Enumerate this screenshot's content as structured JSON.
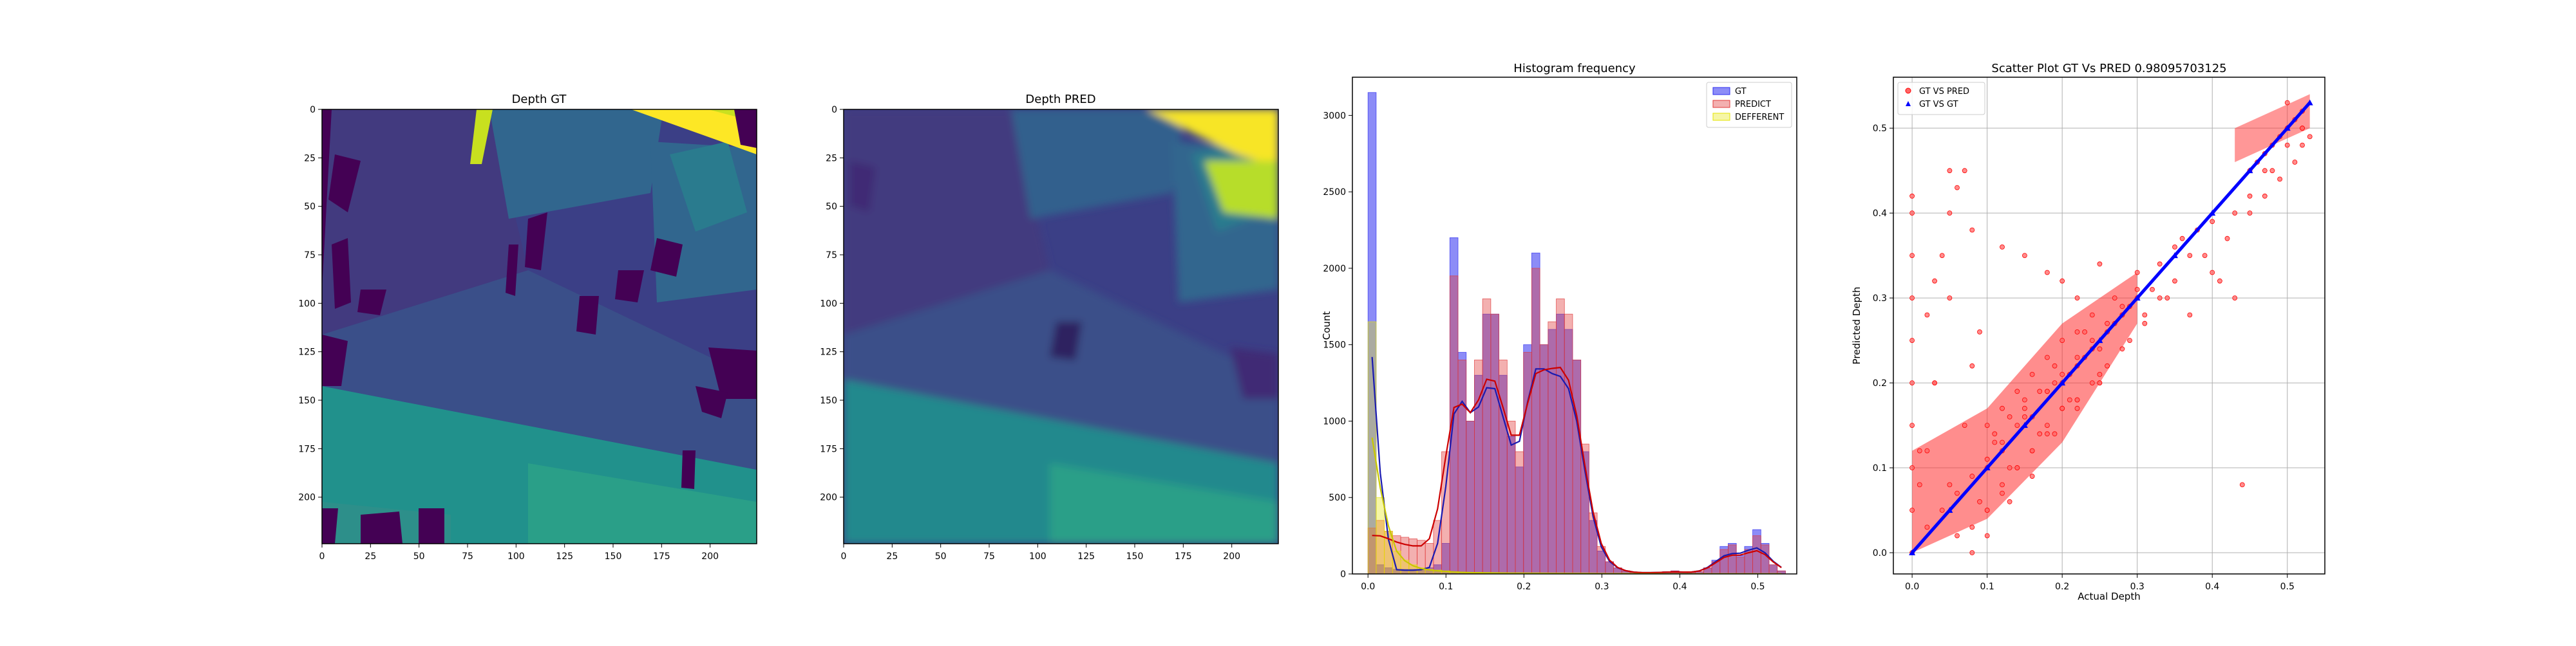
{
  "chart_data": [
    {
      "type": "heatmap",
      "title": "Depth GT",
      "colormap": "viridis",
      "xlim": [
        0,
        224
      ],
      "ylim": [
        224,
        0
      ],
      "xticks": [
        0,
        25,
        50,
        75,
        100,
        125,
        150,
        175,
        200
      ],
      "yticks": [
        0,
        25,
        50,
        75,
        100,
        125,
        150,
        175,
        200
      ]
    },
    {
      "type": "heatmap",
      "title": "Depth PRED",
      "colormap": "viridis",
      "xlim": [
        0,
        224
      ],
      "ylim": [
        224,
        0
      ],
      "xticks": [
        0,
        25,
        50,
        75,
        100,
        125,
        150,
        175,
        200
      ],
      "yticks": [
        0,
        25,
        50,
        75,
        100,
        125,
        150,
        175,
        200
      ]
    },
    {
      "type": "bar",
      "title": "Histogram frequency",
      "xlabel": "",
      "ylabel": "Count",
      "xlim": [
        -0.02,
        0.55
      ],
      "ylim": [
        0,
        3250
      ],
      "xticks": [
        "0.0",
        "0.1",
        "0.2",
        "0.3",
        "0.4",
        "0.5"
      ],
      "yticks": [
        "0",
        "500",
        "1000",
        "1500",
        "2000",
        "2500",
        "3000"
      ],
      "legend_position": "top-right",
      "bin_width": 0.0105,
      "series": [
        {
          "name": "GT",
          "color": "#2d2df0",
          "bins_start": [
            0.0,
            0.0105,
            0.021,
            0.0315,
            0.042,
            0.0525,
            0.063,
            0.0735,
            0.084,
            0.0945,
            0.105,
            0.1155,
            0.126,
            0.1365,
            0.147,
            0.1575,
            0.168,
            0.1785,
            0.189,
            0.1995,
            0.21,
            0.2205,
            0.231,
            0.2415,
            0.252,
            0.2625,
            0.273,
            0.2835,
            0.294,
            0.3045,
            0.315,
            0.3255,
            0.336,
            0.3465,
            0.357,
            0.3675,
            0.378,
            0.3885,
            0.399,
            0.4095,
            0.42,
            0.4305,
            0.441,
            0.4515,
            0.462,
            0.4725,
            0.483,
            0.4935,
            0.504,
            0.5145,
            0.525
          ],
          "values": [
            3150,
            60,
            40,
            30,
            30,
            30,
            30,
            40,
            60,
            200,
            2200,
            1450,
            1000,
            1300,
            1700,
            1700,
            1300,
            900,
            700,
            1500,
            2100,
            1500,
            1600,
            1700,
            1600,
            1400,
            800,
            350,
            150,
            80,
            40,
            20,
            10,
            10,
            10,
            10,
            15,
            20,
            15,
            10,
            15,
            40,
            90,
            180,
            200,
            120,
            180,
            290,
            200,
            60,
            20
          ]
        },
        {
          "name": "PREDICT",
          "color": "#e03a3a",
          "bins_start": [
            0.0,
            0.0105,
            0.021,
            0.0315,
            0.042,
            0.0525,
            0.063,
            0.0735,
            0.084,
            0.0945,
            0.105,
            0.1155,
            0.126,
            0.1365,
            0.147,
            0.1575,
            0.168,
            0.1785,
            0.189,
            0.1995,
            0.21,
            0.2205,
            0.231,
            0.2415,
            0.252,
            0.2625,
            0.273,
            0.2835,
            0.294,
            0.3045,
            0.315,
            0.3255,
            0.336,
            0.3465,
            0.357,
            0.3675,
            0.378,
            0.3885,
            0.399,
            0.4095,
            0.42,
            0.4305,
            0.441,
            0.4515,
            0.462,
            0.4725,
            0.483,
            0.4935,
            0.504,
            0.5145,
            0.525
          ],
          "values": [
            300,
            350,
            280,
            250,
            240,
            230,
            220,
            200,
            350,
            800,
            1950,
            1400,
            1000,
            1400,
            1800,
            1700,
            1400,
            1000,
            800,
            1450,
            2000,
            1500,
            1650,
            1800,
            1700,
            1400,
            850,
            400,
            180,
            80,
            40,
            20,
            10,
            10,
            10,
            10,
            15,
            20,
            15,
            10,
            15,
            40,
            80,
            160,
            190,
            110,
            160,
            250,
            190,
            60,
            20
          ]
        },
        {
          "name": "DEFFERENT",
          "color": "#e6e600",
          "bins_start": [
            0.0,
            0.0105,
            0.021,
            0.0315,
            0.042,
            0.0525,
            0.063,
            0.0735,
            0.084,
            0.0945,
            0.105,
            0.1155,
            0.126,
            0.1365,
            0.147,
            0.1575,
            0.168,
            0.1785,
            0.189,
            0.1995,
            0.21,
            0.2205,
            0.231,
            0.2415,
            0.252,
            0.2625,
            0.273,
            0.2835,
            0.294,
            0.3045,
            0.315,
            0.3255,
            0.336,
            0.3465,
            0.357,
            0.3675,
            0.378,
            0.3885,
            0.399,
            0.4095,
            0.42,
            0.4305,
            0.441,
            0.4515,
            0.462,
            0.4725,
            0.483,
            0.4935,
            0.504,
            0.5145,
            0.525
          ],
          "values": [
            1650,
            500,
            280,
            150,
            90,
            60,
            40,
            30,
            25,
            20,
            15,
            12,
            10,
            10,
            8,
            8,
            7,
            6,
            6,
            5,
            5,
            5,
            4,
            4,
            4,
            3,
            3,
            3,
            2,
            2,
            2,
            2,
            2,
            1,
            1,
            1,
            1,
            1,
            1,
            1,
            1,
            1,
            1,
            1,
            1,
            1,
            1,
            1,
            1,
            1,
            1
          ]
        }
      ]
    },
    {
      "type": "scatter",
      "title": "Scatter Plot GT Vs PRED 0.98095703125",
      "xlabel": "Actual Depth",
      "ylabel": "Predicted Depth",
      "xlim": [
        -0.025,
        0.55
      ],
      "ylim": [
        -0.025,
        0.56
      ],
      "xticks": [
        "0.0",
        "0.1",
        "0.2",
        "0.3",
        "0.4",
        "0.5"
      ],
      "yticks": [
        "0.0",
        "0.1",
        "0.2",
        "0.3",
        "0.4",
        "0.5"
      ],
      "grid": true,
      "legend_position": "top-left",
      "series": [
        {
          "name": "GT VS PRED",
          "color": "#ff0000",
          "marker": "circle",
          "x": [
            0.0,
            0.0,
            0.0,
            0.0,
            0.0,
            0.0,
            0.0,
            0.0,
            0.0,
            0.0,
            0.01,
            0.02,
            0.03,
            0.04,
            0.05,
            0.02,
            0.03,
            0.05,
            0.06,
            0.07,
            0.08,
            0.09,
            0.1,
            0.11,
            0.12,
            0.13,
            0.14,
            0.15,
            0.16,
            0.17,
            0.18,
            0.19,
            0.2,
            0.21,
            0.22,
            0.23,
            0.24,
            0.25,
            0.26,
            0.27,
            0.28,
            0.29,
            0.3,
            0.1,
            0.12,
            0.14,
            0.16,
            0.18,
            0.2,
            0.22,
            0.24,
            0.26,
            0.1,
            0.12,
            0.14,
            0.16,
            0.18,
            0.2,
            0.22,
            0.24,
            0.06,
            0.08,
            0.1,
            0.12,
            0.14,
            0.16,
            0.18,
            0.2,
            0.22,
            0.25,
            0.05,
            0.08,
            0.12,
            0.15,
            0.18,
            0.2,
            0.22,
            0.25,
            0.28,
            0.3,
            0.32,
            0.35,
            0.38,
            0.4,
            0.43,
            0.45,
            0.46,
            0.47,
            0.48,
            0.49,
            0.5,
            0.51,
            0.52,
            0.45,
            0.47,
            0.49,
            0.51,
            0.52,
            0.44,
            0.48,
            0.5,
            0.52,
            0.02,
            0.04,
            0.06,
            0.08,
            0.1,
            0.12,
            0.15,
            0.18,
            0.2,
            0.22,
            0.24,
            0.26,
            0.28,
            0.3,
            0.33,
            0.36,
            0.01,
            0.03,
            0.05,
            0.07,
            0.09,
            0.11,
            0.13,
            0.15,
            0.17,
            0.19,
            0.21,
            0.23,
            0.25,
            0.27,
            0.29,
            0.31,
            0.34,
            0.37,
            0.4,
            0.42,
            0.08,
            0.1,
            0.13,
            0.16,
            0.19,
            0.22,
            0.25,
            0.28,
            0.31,
            0.33,
            0.35,
            0.37,
            0.39,
            0.41,
            0.43,
            0.45,
            0.47,
            0.5,
            0.52,
            0.53
          ],
          "y": [
            0.0,
            0.05,
            0.1,
            0.15,
            0.2,
            0.25,
            0.3,
            0.35,
            0.4,
            0.42,
            0.08,
            0.12,
            0.2,
            0.35,
            0.45,
            0.28,
            0.32,
            0.3,
            0.43,
            0.45,
            0.22,
            0.26,
            0.1,
            0.13,
            0.12,
            0.16,
            0.15,
            0.17,
            0.16,
            0.19,
            0.19,
            0.2,
            0.2,
            0.21,
            0.22,
            0.23,
            0.24,
            0.24,
            0.26,
            0.27,
            0.28,
            0.29,
            0.3,
            0.05,
            0.07,
            0.1,
            0.12,
            0.15,
            0.17,
            0.18,
            0.2,
            0.22,
            0.15,
            0.17,
            0.19,
            0.21,
            0.23,
            0.25,
            0.26,
            0.28,
            0.02,
            0.03,
            0.05,
            0.08,
            0.1,
            0.12,
            0.14,
            0.17,
            0.18,
            0.21,
            0.4,
            0.38,
            0.36,
            0.35,
            0.33,
            0.32,
            0.3,
            0.34,
            0.28,
            0.33,
            0.31,
            0.36,
            0.38,
            0.39,
            0.3,
            0.45,
            0.46,
            0.47,
            0.48,
            0.49,
            0.5,
            0.51,
            0.52,
            0.4,
            0.42,
            0.44,
            0.46,
            0.5,
            0.08,
            0.45,
            0.53,
            0.48,
            0.03,
            0.05,
            0.07,
            0.09,
            0.11,
            0.13,
            0.16,
            0.19,
            0.21,
            0.23,
            0.25,
            0.27,
            0.29,
            0.31,
            0.34,
            0.37,
            0.12,
            0.2,
            0.08,
            0.15,
            0.06,
            0.14,
            0.1,
            0.18,
            0.14,
            0.22,
            0.18,
            0.26,
            0.2,
            0.3,
            0.25,
            0.28,
            0.3,
            0.35,
            0.33,
            0.37,
            0.0,
            0.02,
            0.06,
            0.09,
            0.14,
            0.17,
            0.2,
            0.24,
            0.27,
            0.3,
            0.32,
            0.28,
            0.35,
            0.32,
            0.4,
            0.42,
            0.45,
            0.48,
            0.5,
            0.49
          ]
        },
        {
          "name": "GT VS GT",
          "color": "#0000ff",
          "marker": "triangle",
          "x": [
            0.0,
            0.05,
            0.1,
            0.15,
            0.2,
            0.25,
            0.3,
            0.35,
            0.4,
            0.45,
            0.5,
            0.53
          ],
          "y": [
            0.0,
            0.05,
            0.1,
            0.15,
            0.2,
            0.25,
            0.3,
            0.35,
            0.4,
            0.45,
            0.5,
            0.53
          ]
        }
      ]
    }
  ]
}
